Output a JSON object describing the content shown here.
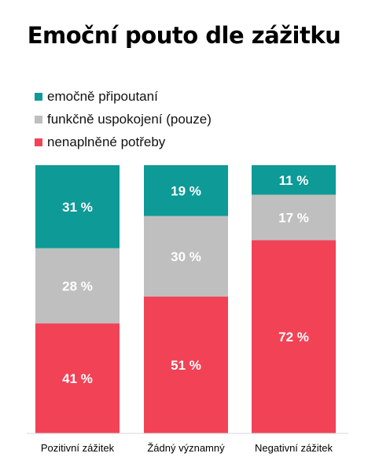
{
  "chart_data": {
    "type": "bar",
    "stacked": true,
    "orientation": "vertical",
    "title": "Emoční pouto dle zážitku",
    "categories": [
      "Pozitivní zážitek",
      "Žádný významný",
      "Negativní zážitek"
    ],
    "series": [
      {
        "name": "emočně připoutaní",
        "color": "#0e9a96",
        "values": [
          31,
          19,
          11
        ],
        "labels": [
          "31 %",
          "19 %",
          "11 %"
        ]
      },
      {
        "name": "funkčně uspokojení (pouze)",
        "color": "#bfbfbf",
        "values": [
          28,
          30,
          17
        ],
        "labels": [
          "28 %",
          "30 %",
          "17 %"
        ]
      },
      {
        "name": "nenaplněné potřeby",
        "color": "#f24256",
        "values": [
          41,
          51,
          72
        ],
        "labels": [
          "41 %",
          "51 %",
          "72 %"
        ]
      }
    ],
    "stack_order": "top-to-bottom",
    "ylim": [
      0,
      100
    ],
    "grid": false,
    "legend_position": "top-left"
  }
}
